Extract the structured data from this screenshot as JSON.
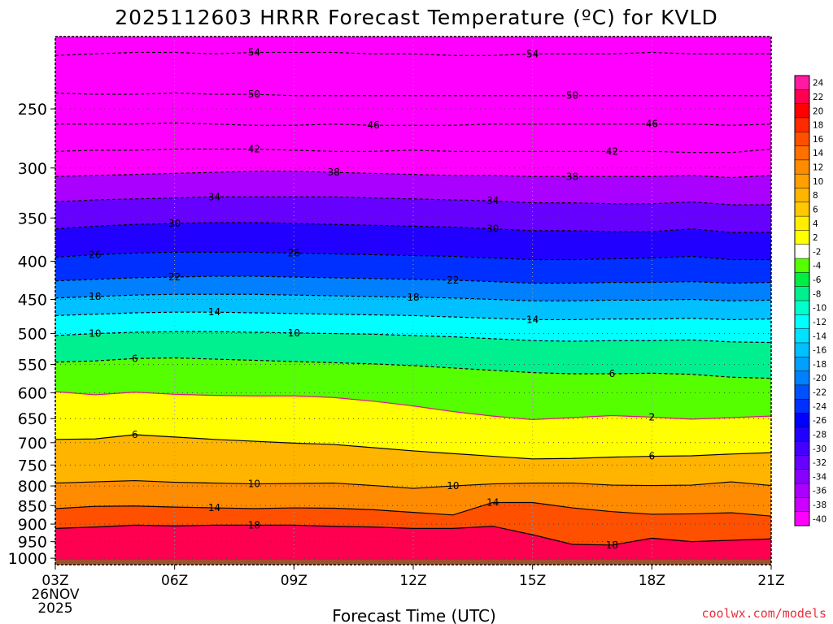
{
  "chart_data": {
    "type": "heatmap",
    "title": "2025112603 HRRR Forecast Temperature (ºC) for KVLD",
    "xlabel": "Forecast Time (UTC)",
    "ylabel": "",
    "credit": "coolwx.com/models",
    "x_range_hours": [
      3,
      21
    ],
    "y_range_hpa": [
      200,
      1020
    ],
    "y_scale": "log-pressure (inverted)",
    "x_ticks": [
      {
        "label": "03Z",
        "hour": 3
      },
      {
        "label": "06Z",
        "hour": 6
      },
      {
        "label": "09Z",
        "hour": 9
      },
      {
        "label": "12Z",
        "hour": 12
      },
      {
        "label": "15Z",
        "hour": 15
      },
      {
        "label": "18Z",
        "hour": 18
      },
      {
        "label": "21Z",
        "hour": 21
      }
    ],
    "x_subtitle": [
      "26NOV",
      "2025"
    ],
    "y_ticks": [
      {
        "label": "250",
        "p": 250
      },
      {
        "label": "300",
        "p": 300
      },
      {
        "label": "350",
        "p": 350
      },
      {
        "label": "400",
        "p": 400
      },
      {
        "label": "450",
        "p": 450
      },
      {
        "label": "500",
        "p": 500
      },
      {
        "label": "550",
        "p": 550
      },
      {
        "label": "600",
        "p": 600
      },
      {
        "label": "650",
        "p": 650
      },
      {
        "label": "700",
        "p": 700
      },
      {
        "label": "750",
        "p": 750
      },
      {
        "label": "800",
        "p": 800
      },
      {
        "label": "850",
        "p": 850
      },
      {
        "label": "900",
        "p": 900
      },
      {
        "label": "950",
        "p": 950
      },
      {
        "label": "1000",
        "p": 1000
      }
    ],
    "colorbar": {
      "labels": [
        "24",
        "22",
        "20",
        "18",
        "16",
        "14",
        "12",
        "10",
        "8",
        "6",
        "4",
        "2",
        "-2",
        "-4",
        "-6",
        "-8",
        "-10",
        "-12",
        "-14",
        "-16",
        "-18",
        "-20",
        "-22",
        "-24",
        "-26",
        "-28",
        "-30",
        "-32",
        "-34",
        "-36",
        "-38",
        "-40"
      ],
      "colors": [
        "#ff1aa0",
        "#ff0050",
        "#ff0000",
        "#ff2a00",
        "#ff5000",
        "#ff7000",
        "#ff8c00",
        "#ffa000",
        "#ffb400",
        "#ffc800",
        "#ffee00",
        "#ffff00",
        "#ffffff",
        "#55ff00",
        "#00ee44",
        "#00f090",
        "#00ffcc",
        "#00ffff",
        "#00e0ff",
        "#00c0ff",
        "#00a0ff",
        "#0080ff",
        "#0050ff",
        "#0030ff",
        "#0000ff",
        "#2200ff",
        "#4400ff",
        "#6600ff",
        "#8800ff",
        "#aa00ff",
        "#cc00ff",
        "#ff00ff"
      ]
    },
    "isotherms": [
      {
        "temp": -54,
        "label": "54",
        "pressures": [
          212,
          211,
          210,
          210,
          211,
          210,
          210,
          210,
          211,
          211,
          212,
          212,
          211,
          211,
          211,
          210,
          211,
          211,
          211
        ]
      },
      {
        "temp": -50,
        "label": "50",
        "pressures": [
          238,
          239,
          239,
          238,
          239,
          239,
          240,
          240,
          240,
          240,
          240,
          240,
          240,
          240,
          240,
          240,
          240,
          240,
          240
        ]
      },
      {
        "temp": -46,
        "label": "46",
        "pressures": [
          262,
          262,
          262,
          261,
          262,
          263,
          263,
          262,
          263,
          263,
          263,
          262,
          262,
          262,
          262,
          262,
          262,
          263,
          262
        ]
      },
      {
        "temp": -42,
        "label": "42",
        "pressures": [
          285,
          284,
          284,
          283,
          283,
          283,
          284,
          285,
          285,
          284,
          285,
          285,
          285,
          285,
          285,
          285,
          286,
          286,
          283
        ]
      },
      {
        "temp": -38,
        "label": "38",
        "pressures": [
          308,
          307,
          306,
          305,
          304,
          303,
          303,
          304,
          305,
          306,
          307,
          307,
          308,
          308,
          308,
          308,
          307,
          309,
          307
        ]
      },
      {
        "temp": -34,
        "label": "34",
        "pressures": [
          333,
          331,
          330,
          329,
          328,
          328,
          328,
          328,
          329,
          330,
          331,
          332,
          334,
          334,
          335,
          335,
          333,
          336,
          336
        ]
      },
      {
        "temp": -30,
        "label": "30",
        "pressures": [
          362,
          359,
          357,
          356,
          355,
          355,
          356,
          357,
          358,
          359,
          360,
          362,
          364,
          364,
          365,
          365,
          362,
          366,
          366
        ]
      },
      {
        "temp": -26,
        "label": "26",
        "pressures": [
          395,
          392,
          390,
          389,
          389,
          389,
          390,
          391,
          392,
          393,
          394,
          396,
          398,
          398,
          397,
          396,
          394,
          398,
          398
        ]
      },
      {
        "temp": -22,
        "label": "22",
        "pressures": [
          425,
          423,
          421,
          420,
          419,
          419,
          420,
          421,
          422,
          423,
          424,
          426,
          428,
          428,
          427,
          427,
          426,
          428,
          427
        ]
      },
      {
        "temp": -18,
        "label": "18",
        "pressures": [
          448,
          446,
          444,
          443,
          443,
          443,
          444,
          445,
          446,
          447,
          448,
          450,
          452,
          452,
          451,
          451,
          450,
          452,
          451
        ]
      },
      {
        "temp": -14,
        "label": "14",
        "pressures": [
          473,
          471,
          469,
          468,
          468,
          469,
          470,
          471,
          472,
          473,
          475,
          477,
          479,
          479,
          478,
          478,
          477,
          479,
          478
        ]
      },
      {
        "temp": -10,
        "label": "10",
        "pressures": [
          503,
          500,
          498,
          497,
          497,
          498,
          499,
          500,
          501,
          503,
          505,
          508,
          511,
          512,
          511,
          511,
          510,
          513,
          514
        ]
      },
      {
        "temp": -6,
        "label": "6",
        "pressures": [
          546,
          544,
          540,
          539,
          541,
          543,
          545,
          547,
          549,
          552,
          556,
          560,
          564,
          566,
          566,
          565,
          567,
          572,
          574
        ]
      },
      {
        "temp": -2,
        "label": "2",
        "pressures": [
          598,
          604,
          599,
          603,
          605,
          606,
          606,
          609,
          616,
          625,
          636,
          645,
          652,
          648,
          644,
          647,
          651,
          648,
          645
        ]
      },
      {
        "temp": 6,
        "label": "6",
        "pressures": [
          693,
          692,
          683,
          688,
          693,
          697,
          701,
          704,
          711,
          718,
          724,
          730,
          736,
          735,
          732,
          730,
          729,
          725,
          722
        ]
      },
      {
        "temp": 10,
        "label": "10",
        "pressures": [
          793,
          790,
          787,
          791,
          793,
          795,
          794,
          793,
          799,
          806,
          800,
          795,
          793,
          793,
          798,
          799,
          798,
          790,
          799
        ]
      },
      {
        "temp": 14,
        "label": "14",
        "pressures": [
          858,
          852,
          851,
          854,
          856,
          858,
          856,
          857,
          861,
          868,
          875,
          842,
          842,
          856,
          866,
          873,
          872,
          869,
          878
        ]
      },
      {
        "temp": 18,
        "label": "18",
        "pressures": [
          912,
          908,
          903,
          905,
          903,
          903,
          903,
          906,
          908,
          912,
          912,
          906,
          930,
          958,
          960,
          940,
          950,
          946,
          942
        ]
      }
    ],
    "ground_pressure_hpa": 1005,
    "ground_color": "#a0522d"
  }
}
